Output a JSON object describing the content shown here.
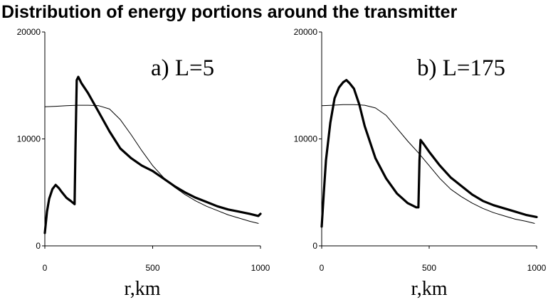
{
  "title": "Distribution of energy portions around the transmitter",
  "chart_data": [
    {
      "type": "line",
      "panel_label": "a)  L=5",
      "xlabel": "r,km",
      "ylabel": "",
      "xlim": [
        0,
        1000
      ],
      "ylim": [
        0,
        20000
      ],
      "x_ticks": [
        "0",
        "500",
        "1000"
      ],
      "y_ticks": [
        "0",
        "10000",
        "20000"
      ],
      "grid": false,
      "series": [
        {
          "style": "thick",
          "points": [
            [
              0,
              1200
            ],
            [
              10,
              3200
            ],
            [
              20,
              4400
            ],
            [
              35,
              5300
            ],
            [
              50,
              5700
            ],
            [
              65,
              5400
            ],
            [
              80,
              5000
            ],
            [
              100,
              4500
            ],
            [
              120,
              4200
            ],
            [
              138,
              3900
            ],
            [
              142,
              9000
            ],
            [
              148,
              15500
            ],
            [
              155,
              15800
            ],
            [
              170,
              15200
            ],
            [
              200,
              14300
            ],
            [
              250,
              12500
            ],
            [
              300,
              10700
            ],
            [
              350,
              9100
            ],
            [
              400,
              8200
            ],
            [
              450,
              7500
            ],
            [
              500,
              7000
            ],
            [
              550,
              6300
            ],
            [
              600,
              5600
            ],
            [
              650,
              5000
            ],
            [
              700,
              4500
            ],
            [
              750,
              4100
            ],
            [
              800,
              3700
            ],
            [
              850,
              3400
            ],
            [
              900,
              3200
            ],
            [
              950,
              3000
            ],
            [
              990,
              2800
            ],
            [
              1000,
              3000
            ]
          ]
        },
        {
          "style": "thin",
          "points": [
            [
              0,
              13000
            ],
            [
              50,
              13050
            ],
            [
              100,
              13100
            ],
            [
              150,
              13150
            ],
            [
              200,
              13150
            ],
            [
              250,
              13100
            ],
            [
              300,
              12800
            ],
            [
              350,
              11800
            ],
            [
              400,
              10400
            ],
            [
              450,
              8900
            ],
            [
              500,
              7500
            ],
            [
              550,
              6400
            ],
            [
              600,
              5500
            ],
            [
              650,
              4800
            ],
            [
              700,
              4200
            ],
            [
              750,
              3700
            ],
            [
              800,
              3300
            ],
            [
              850,
              2900
            ],
            [
              900,
              2600
            ],
            [
              950,
              2300
            ],
            [
              990,
              2100
            ]
          ]
        }
      ]
    },
    {
      "type": "line",
      "panel_label": "b) L=175",
      "xlabel": "r,km",
      "ylabel": "",
      "xlim": [
        0,
        1000
      ],
      "ylim": [
        0,
        20000
      ],
      "x_ticks": [
        "0",
        "500",
        "1000"
      ],
      "y_ticks": [
        "0",
        "10000",
        "20000"
      ],
      "grid": false,
      "series": [
        {
          "style": "thick",
          "points": [
            [
              0,
              1800
            ],
            [
              10,
              5000
            ],
            [
              20,
              8000
            ],
            [
              40,
              11500
            ],
            [
              60,
              13800
            ],
            [
              80,
              14800
            ],
            [
              100,
              15300
            ],
            [
              115,
              15500
            ],
            [
              130,
              15200
            ],
            [
              150,
              14700
            ],
            [
              175,
              13200
            ],
            [
              200,
              11200
            ],
            [
              250,
              8200
            ],
            [
              300,
              6300
            ],
            [
              350,
              4900
            ],
            [
              400,
              4000
            ],
            [
              440,
              3600
            ],
            [
              450,
              3600
            ],
            [
              455,
              8000
            ],
            [
              460,
              9900
            ],
            [
              475,
              9500
            ],
            [
              500,
              8800
            ],
            [
              550,
              7500
            ],
            [
              600,
              6400
            ],
            [
              650,
              5600
            ],
            [
              700,
              4800
            ],
            [
              750,
              4200
            ],
            [
              800,
              3800
            ],
            [
              850,
              3500
            ],
            [
              900,
              3200
            ],
            [
              950,
              2900
            ],
            [
              1000,
              2700
            ]
          ]
        },
        {
          "style": "thin",
          "points": [
            [
              0,
              13100
            ],
            [
              50,
              13150
            ],
            [
              100,
              13200
            ],
            [
              150,
              13200
            ],
            [
              200,
              13150
            ],
            [
              250,
              12900
            ],
            [
              300,
              12200
            ],
            [
              350,
              11000
            ],
            [
              400,
              9800
            ],
            [
              450,
              8700
            ],
            [
              500,
              7500
            ],
            [
              550,
              6300
            ],
            [
              600,
              5300
            ],
            [
              650,
              4600
            ],
            [
              700,
              4000
            ],
            [
              750,
              3500
            ],
            [
              800,
              3100
            ],
            [
              850,
              2800
            ],
            [
              900,
              2500
            ],
            [
              950,
              2300
            ],
            [
              990,
              2100
            ]
          ]
        }
      ]
    }
  ]
}
